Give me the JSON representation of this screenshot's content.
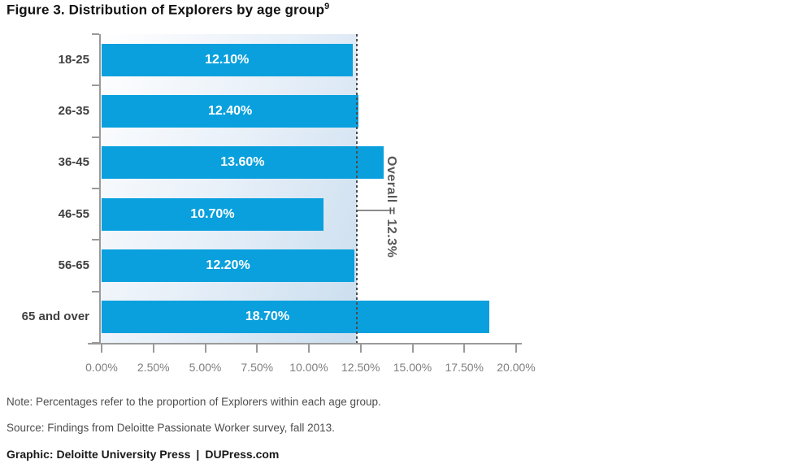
{
  "figure": {
    "title": "Figure 3. Distribution of Explorers by age group",
    "title_superscript": "9"
  },
  "chart_data": {
    "type": "bar",
    "orientation": "horizontal",
    "title": "Figure 3. Distribution of Explorers by age group",
    "xlabel": "",
    "ylabel": "",
    "categories": [
      "18-25",
      "26-35",
      "36-45",
      "46-55",
      "56-65",
      "65 and over"
    ],
    "values": [
      12.1,
      12.4,
      13.6,
      10.7,
      12.2,
      18.7
    ],
    "value_labels": [
      "12.10%",
      "12.40%",
      "13.60%",
      "10.70%",
      "12.20%",
      "18.70%"
    ],
    "overall": {
      "value": 12.3,
      "label": "Overall = 12.3%"
    },
    "x_tick_labels": [
      "0.00%",
      "2.50%",
      "5.00%",
      "7.50%",
      "10.00%",
      "12.50%",
      "15.00%",
      "17.50%",
      "20.00%"
    ],
    "x_tick_values": [
      0,
      2.5,
      5,
      7.5,
      10,
      12.5,
      15,
      17.5,
      20
    ],
    "xlim": [
      0,
      20
    ],
    "grid": false,
    "legend": false,
    "colors": {
      "bar": "#09a0dd",
      "band_gradient_start": "#ffffff",
      "band_gradient_mid": "#e7eff8",
      "band_gradient_end": "#c9ddee",
      "axis": "#9a9a9a",
      "overall_line": "#4d4d4d",
      "bar_label_text": "#ffffff"
    }
  },
  "footer": {
    "note": "Note: Percentages refer to the proportion of Explorers within each age group.",
    "source": "Source: Findings from Deloitte Passionate Worker survey, fall 2013.",
    "credit_publisher": "Graphic: Deloitte University Press",
    "credit_separator": "|",
    "credit_site": "DUPress.com"
  }
}
